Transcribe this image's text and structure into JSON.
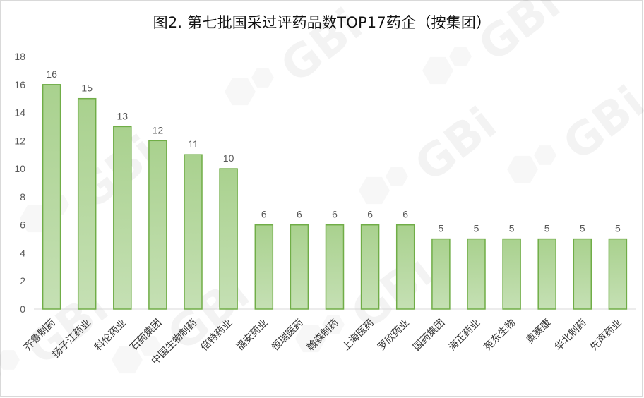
{
  "chart_data": {
    "type": "bar",
    "title": "图2. 第七批国采过评药品数TOP17药企（按集团）",
    "xlabel": "",
    "ylabel": "",
    "ylim": [
      0,
      18
    ],
    "yticks": [
      0,
      2,
      4,
      6,
      8,
      10,
      12,
      14,
      16,
      18
    ],
    "categories": [
      "齐鲁制药",
      "扬子江药业",
      "科伦药业",
      "石药集团",
      "中国生物制药",
      "倍特药业",
      "福安药业",
      "恒瑞医药",
      "翰森制药",
      "上海医药",
      "罗欣药业",
      "国药集团",
      "海正药业",
      "苑东生物",
      "奥赛康",
      "华北制药",
      "先声药业"
    ],
    "values": [
      16,
      15,
      13,
      12,
      11,
      10,
      6,
      6,
      6,
      6,
      6,
      5,
      5,
      5,
      5,
      5,
      5
    ],
    "grid": false,
    "legend": "none",
    "bar_fill_top": "#a9d18e",
    "bar_fill_bottom": "#c5e0b4",
    "bar_stroke": "#70ad47"
  },
  "watermark": {
    "text": "GBi",
    "icon": "hexagon-watermark-icon"
  }
}
